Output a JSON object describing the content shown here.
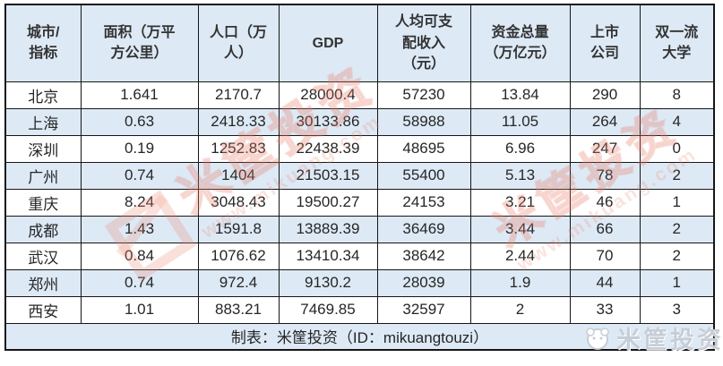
{
  "chart_data": {
    "type": "table",
    "title": "城市指标对比表",
    "columns": [
      "城市/指标",
      "面积（万平方公里）",
      "人口（万人）",
      "GDP",
      "人均可支配收入（元）",
      "资金总量（万亿元）",
      "上市公司",
      "双一流大学"
    ],
    "rows": [
      [
        "北京",
        "1.641",
        "2170.7",
        "28000.4",
        "57230",
        "13.84",
        "290",
        "8"
      ],
      [
        "上海",
        "0.63",
        "2418.33",
        "30133.86",
        "58988",
        "11.05",
        "264",
        "4"
      ],
      [
        "深圳",
        "0.19",
        "1252.83",
        "22438.39",
        "48695",
        "6.96",
        "247",
        "0"
      ],
      [
        "广州",
        "0.74",
        "1404",
        "21503.15",
        "55400",
        "5.13",
        "78",
        "2"
      ],
      [
        "重庆",
        "8.24",
        "3048.43",
        "19500.27",
        "24153",
        "3.21",
        "46",
        "1"
      ],
      [
        "成都",
        "1.43",
        "1591.8",
        "13889.39",
        "36469",
        "3.44",
        "66",
        "2"
      ],
      [
        "武汉",
        "0.84",
        "1076.62",
        "13410.34",
        "38642",
        "2.44",
        "70",
        "2"
      ],
      [
        "郑州",
        "0.74",
        "972.4",
        "9130.2",
        "28039",
        "1.9",
        "44",
        "1"
      ],
      [
        "西安",
        "1.01",
        "883.21",
        "7469.85",
        "32597",
        "2",
        "33",
        "3"
      ]
    ]
  },
  "table": {
    "header_lines": [
      "城市/\n指标",
      "面积（万平\n方公里）",
      "人口（万\n人）",
      "GDP",
      "人均可支\n配收入\n（元）",
      "资金总量\n（万亿元）",
      "上市\n公司",
      "双一流\n大学"
    ],
    "footer": "制表：米筐投资（ID：mikuangtouzi）"
  },
  "watermarks": {
    "brand_text": "米筐投资",
    "url_text": "www.mikuang.com",
    "corner_logo_text": "米筐投资"
  },
  "colors": {
    "header_bg": "#dde9f5",
    "row_bg": "#ffffff",
    "row_alt_bg": "#dde9f5",
    "border": "#161616",
    "text": "#262626",
    "watermark_pink": "#eb806a",
    "corner_logo_gray": "#c7cdd6"
  }
}
